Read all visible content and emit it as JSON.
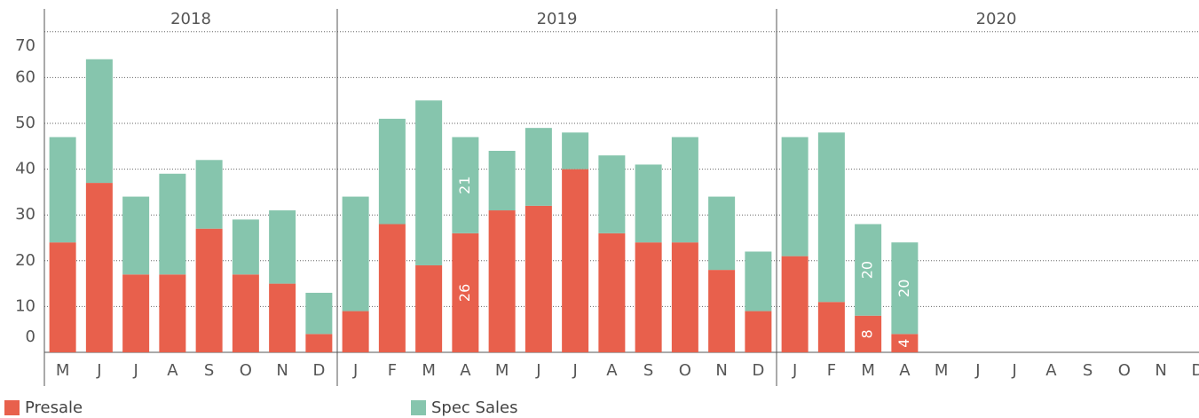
{
  "chart_data": {
    "type": "stacked-bar",
    "groups": [
      {
        "label": "2018",
        "categories": [
          "M",
          "J",
          "J",
          "A",
          "S",
          "O",
          "N",
          "D"
        ]
      },
      {
        "label": "2019",
        "categories": [
          "J",
          "F",
          "M",
          "A",
          "M",
          "J",
          "J",
          "A",
          "S",
          "O",
          "N",
          "D"
        ]
      },
      {
        "label": "2020",
        "categories": [
          "J",
          "F",
          "M",
          "A",
          "M",
          "J",
          "J",
          "A",
          "S",
          "O",
          "N",
          "D"
        ]
      }
    ],
    "series": [
      {
        "name": "Presale",
        "color": "#e8604c",
        "values": [
          [
            24,
            37,
            17,
            17,
            27,
            17,
            15,
            4
          ],
          [
            9,
            28,
            19,
            26,
            31,
            32,
            40,
            26,
            24,
            24,
            18,
            9
          ],
          [
            21,
            11,
            8,
            4,
            null,
            null,
            null,
            null,
            null,
            null,
            null,
            null
          ]
        ],
        "value_labels": [
          [
            null,
            null,
            null,
            null,
            null,
            null,
            null,
            null
          ],
          [
            null,
            null,
            null,
            26,
            null,
            null,
            null,
            null,
            null,
            null,
            null,
            null
          ],
          [
            null,
            null,
            8,
            4,
            null,
            null,
            null,
            null,
            null,
            null,
            null,
            null
          ]
        ]
      },
      {
        "name": "Spec Sales",
        "color": "#86c5ad",
        "values": [
          [
            23,
            27,
            17,
            22,
            15,
            12,
            16,
            9
          ],
          [
            25,
            23,
            36,
            21,
            13,
            17,
            8,
            17,
            17,
            23,
            16,
            13
          ],
          [
            26,
            37,
            20,
            20,
            null,
            null,
            null,
            null,
            null,
            null,
            null,
            null
          ]
        ],
        "value_labels": [
          [
            null,
            null,
            null,
            null,
            null,
            null,
            null,
            null
          ],
          [
            null,
            null,
            null,
            21,
            null,
            null,
            null,
            null,
            null,
            null,
            null,
            null
          ],
          [
            null,
            null,
            20,
            20,
            null,
            null,
            null,
            null,
            null,
            null,
            null,
            null
          ]
        ]
      }
    ],
    "ylim": [
      0,
      75
    ],
    "yticks": [
      0,
      10,
      20,
      30,
      40,
      50,
      60,
      70
    ],
    "grid": true
  }
}
